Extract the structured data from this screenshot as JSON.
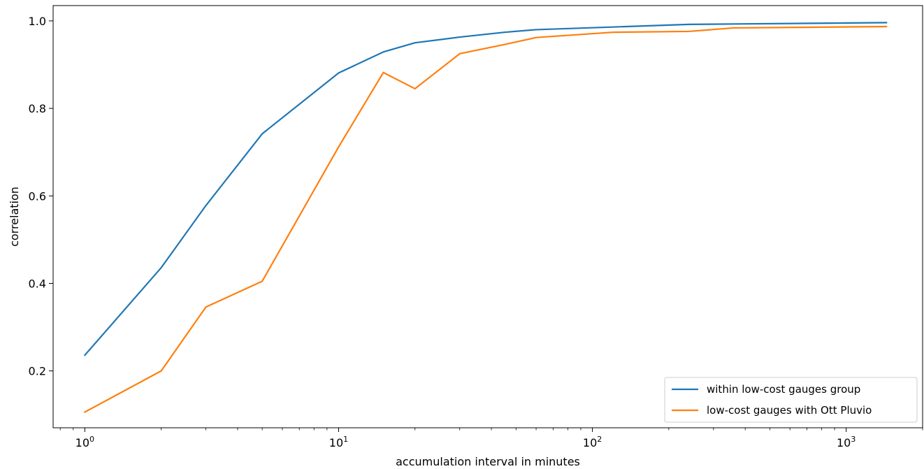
{
  "chart_data": {
    "type": "line",
    "xscale": "log",
    "xlim": [
      0.75,
      2000
    ],
    "ylim": [
      0.07,
      1.035
    ],
    "xlabel": "accumulation interval in minutes",
    "ylabel": "correlation",
    "grid": false,
    "legend_position": "lower-right",
    "xticks": [
      1,
      10,
      100,
      1000
    ],
    "xtick_labels": [
      {
        "base": "10",
        "exp": "0"
      },
      {
        "base": "10",
        "exp": "1"
      },
      {
        "base": "10",
        "exp": "2"
      },
      {
        "base": "10",
        "exp": "3"
      }
    ],
    "yticks": [
      0.2,
      0.4,
      0.6,
      0.8,
      1.0
    ],
    "ytick_labels": [
      "0.2",
      "0.4",
      "0.6",
      "0.8",
      "1.0"
    ],
    "x": [
      1,
      2,
      3,
      5,
      10,
      15,
      20,
      30,
      45,
      60,
      120,
      240,
      360,
      1440
    ],
    "series": [
      {
        "name": "within low-cost gauges group",
        "color": "#1f77b4",
        "values": [
          0.236,
          0.436,
          0.578,
          0.742,
          0.881,
          0.929,
          0.95,
          0.963,
          0.974,
          0.98,
          0.986,
          0.992,
          0.993,
          0.996
        ]
      },
      {
        "name": "low-cost gauges with Ott Pluvio",
        "color": "#ff7f0e",
        "values": [
          0.106,
          0.2,
          0.346,
          0.405,
          0.712,
          0.882,
          0.845,
          0.925,
          0.946,
          0.962,
          0.974,
          0.976,
          0.984,
          0.987
        ]
      }
    ]
  }
}
